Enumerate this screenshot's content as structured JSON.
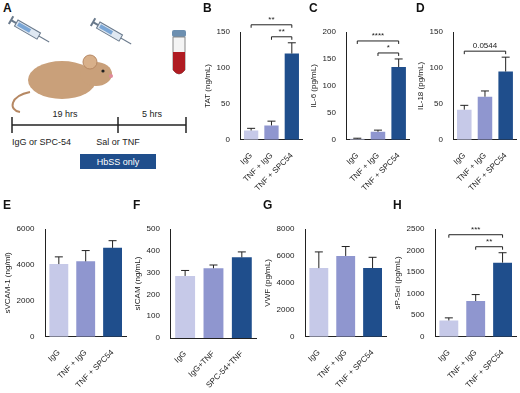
{
  "diagram": {
    "label": "A",
    "treatment_1": "IgG or SPC-54",
    "interval_1": "19 hrs",
    "treatment_2": "Sal or TNF",
    "interval_2": "5 hrs",
    "note": "HbSS only"
  },
  "chart_data": [
    {
      "type": "bar",
      "title": "B",
      "ylabel": "TAT (ng/mL)",
      "categories": [
        "IgG",
        "TNF + IgG",
        "TNF + SPC54"
      ],
      "values": [
        13,
        20,
        120
      ],
      "errors": [
        3,
        6,
        15
      ],
      "colors": [
        "#c6c9e8",
        "#8f96cf",
        "#1f4e8c"
      ],
      "ylim": [
        0,
        150
      ],
      "yticks": [
        0,
        50,
        100,
        150
      ],
      "grid": false,
      "annotations": [
        {
          "from": 0,
          "to": 2,
          "text": "**"
        },
        {
          "from": 1,
          "to": 2,
          "text": "**"
        }
      ]
    },
    {
      "type": "bar",
      "title": "C",
      "ylabel": "IL-6 (pg/mL)",
      "categories": [
        "IgG",
        "TNF + IgG",
        "TNF + SPC54"
      ],
      "values": [
        2,
        15,
        135
      ],
      "errors": [
        1,
        3,
        15
      ],
      "colors": [
        "#c6c9e8",
        "#8f96cf",
        "#1f4e8c"
      ],
      "ylim": [
        0,
        200
      ],
      "yticks": [
        0,
        50,
        100,
        150,
        200
      ],
      "grid": false,
      "annotations": [
        {
          "from": 0,
          "to": 2,
          "text": "****"
        },
        {
          "from": 1,
          "to": 2,
          "text": "*"
        }
      ]
    },
    {
      "type": "bar",
      "title": "D",
      "ylabel": "IL-18 (pg/mL)",
      "categories": [
        "IgG",
        "TNF + IgG",
        "TNF + SPC54"
      ],
      "values": [
        42,
        60,
        95
      ],
      "errors": [
        6,
        8,
        20
      ],
      "colors": [
        "#c6c9e8",
        "#8f96cf",
        "#1f4e8c"
      ],
      "ylim": [
        0,
        150
      ],
      "yticks": [
        0,
        50,
        100,
        150
      ],
      "grid": false,
      "annotations": [
        {
          "from": 0,
          "to": 2,
          "text": "0.0544"
        }
      ]
    },
    {
      "type": "bar",
      "title": "E",
      "ylabel": "sVCAM-1 (ng/ml)",
      "categories": [
        "IgG",
        "TNF + IgG",
        "TNF + SPC54"
      ],
      "values": [
        4050,
        4200,
        4950
      ],
      "errors": [
        400,
        600,
        400
      ],
      "colors": [
        "#c6c9e8",
        "#8f96cf",
        "#1f4e8c"
      ],
      "ylim": [
        0,
        6000
      ],
      "yticks": [
        0,
        2000,
        4000,
        6000
      ],
      "grid": false,
      "annotations": []
    },
    {
      "type": "bar",
      "title": "F",
      "ylabel": "sICAM (ng/mL)",
      "categories": [
        "IgG",
        "IgG+TNF",
        "SPC-54+TNF"
      ],
      "values": [
        285,
        320,
        370
      ],
      "errors": [
        25,
        15,
        25
      ],
      "colors": [
        "#c6c9e8",
        "#8f96cf",
        "#1f4e8c"
      ],
      "ylim": [
        0,
        500
      ],
      "yticks": [
        0,
        100,
        200,
        300,
        400,
        500
      ],
      "grid": false,
      "annotations": []
    },
    {
      "type": "bar",
      "title": "G",
      "ylabel": "VWF (pg/mL)",
      "categories": [
        "IgG",
        "TNF + IgG",
        "TNF + SPC54"
      ],
      "values": [
        5100,
        6000,
        5100
      ],
      "errors": [
        1200,
        700,
        800
      ],
      "colors": [
        "#c6c9e8",
        "#8f96cf",
        "#1f4e8c"
      ],
      "ylim": [
        0,
        8000
      ],
      "yticks": [
        0,
        2000,
        4000,
        6000,
        8000
      ],
      "grid": false,
      "annotations": []
    },
    {
      "type": "bar",
      "title": "H",
      "ylabel": "sP-Sel (pg/mL)",
      "categories": [
        "IgG",
        "TNF + IgG",
        "TNF + SPC54"
      ],
      "values": [
        380,
        830,
        1720
      ],
      "errors": [
        60,
        150,
        230
      ],
      "colors": [
        "#c6c9e8",
        "#8f96cf",
        "#1f4e8c"
      ],
      "ylim": [
        0,
        2500
      ],
      "yticks": [
        0,
        500,
        1000,
        1500,
        2000,
        2500
      ],
      "grid": false,
      "annotations": [
        {
          "from": 0,
          "to": 2,
          "text": "***"
        },
        {
          "from": 1,
          "to": 2,
          "text": "**"
        }
      ]
    }
  ]
}
